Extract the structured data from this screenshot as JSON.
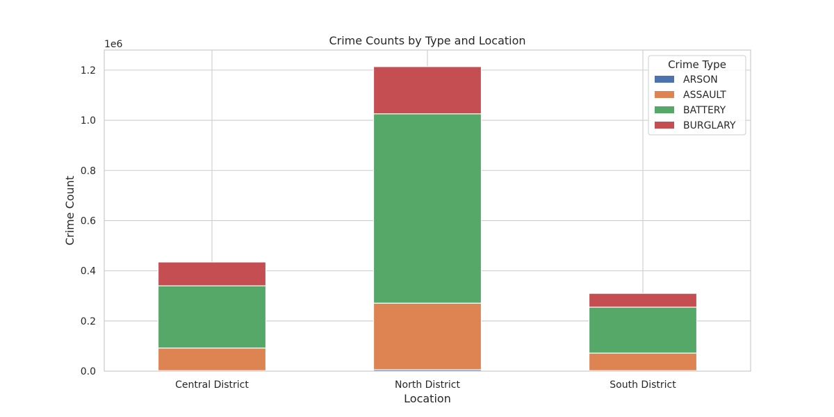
{
  "chart_data": {
    "type": "bar",
    "stacked": true,
    "title": "Crime Counts by Type and Location",
    "xlabel": "Location",
    "ylabel": "Crime Count",
    "y_offset_label": "1e6",
    "y_scale_factor": 1000000,
    "ylim": [
      0,
      1.28
    ],
    "yticks": [
      "0.0",
      "0.2",
      "0.4",
      "0.6",
      "0.8",
      "1.0",
      "1.2"
    ],
    "grid": true,
    "legend_title": "Crime Type",
    "legend_position": "top-right",
    "categories": [
      "Central District",
      "North District",
      "South District"
    ],
    "series": [
      {
        "name": "ARSON",
        "color": "#4c72b0",
        "values": [
          0.002,
          0.006,
          0.002
        ]
      },
      {
        "name": "ASSAULT",
        "color": "#dd8452",
        "values": [
          0.09,
          0.265,
          0.07
        ]
      },
      {
        "name": "BATTERY",
        "color": "#55a868",
        "values": [
          0.248,
          0.755,
          0.183
        ]
      },
      {
        "name": "BURGLARY",
        "color": "#c44e52",
        "values": [
          0.095,
          0.188,
          0.055
        ]
      }
    ]
  }
}
